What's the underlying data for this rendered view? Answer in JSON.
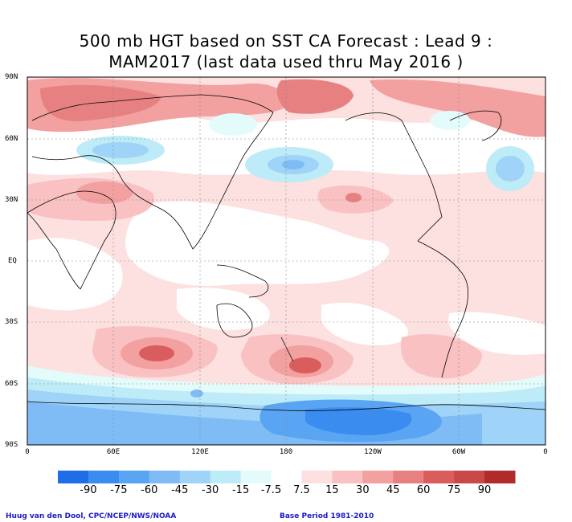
{
  "title_line1": "500 mb HGT based on SST CA Forecast : Lead 9 :",
  "title_line2": "MAM2017 (last data used thru May 2016 )",
  "lat_labels": [
    "90N",
    "60N",
    "30N",
    "EQ",
    "30S",
    "60S",
    "90S"
  ],
  "lon_labels": [
    "0",
    "60E",
    "120E",
    "180",
    "120W",
    "60W",
    "0"
  ],
  "colorbar": {
    "labels": [
      "-90",
      "-75",
      "-60",
      "-45",
      "-30",
      "-15",
      "-7.5",
      "7.5",
      "15",
      "30",
      "45",
      "60",
      "75",
      "90"
    ],
    "colors": [
      "#1f6ee8",
      "#3a8cef",
      "#5aa5f3",
      "#7fbcf6",
      "#9fd3f7",
      "#bdecf8",
      "#e4fbfb",
      "#ffffff",
      "#fde0e0",
      "#f9c1c1",
      "#f2a0a0",
      "#e78181",
      "#da5d5d",
      "#c94848",
      "#b22b2b"
    ]
  },
  "footer_left": "Huug van den Dool, CPC/NCEP/NWS/NOAA",
  "footer_right": "Base Period 1981-2010"
}
